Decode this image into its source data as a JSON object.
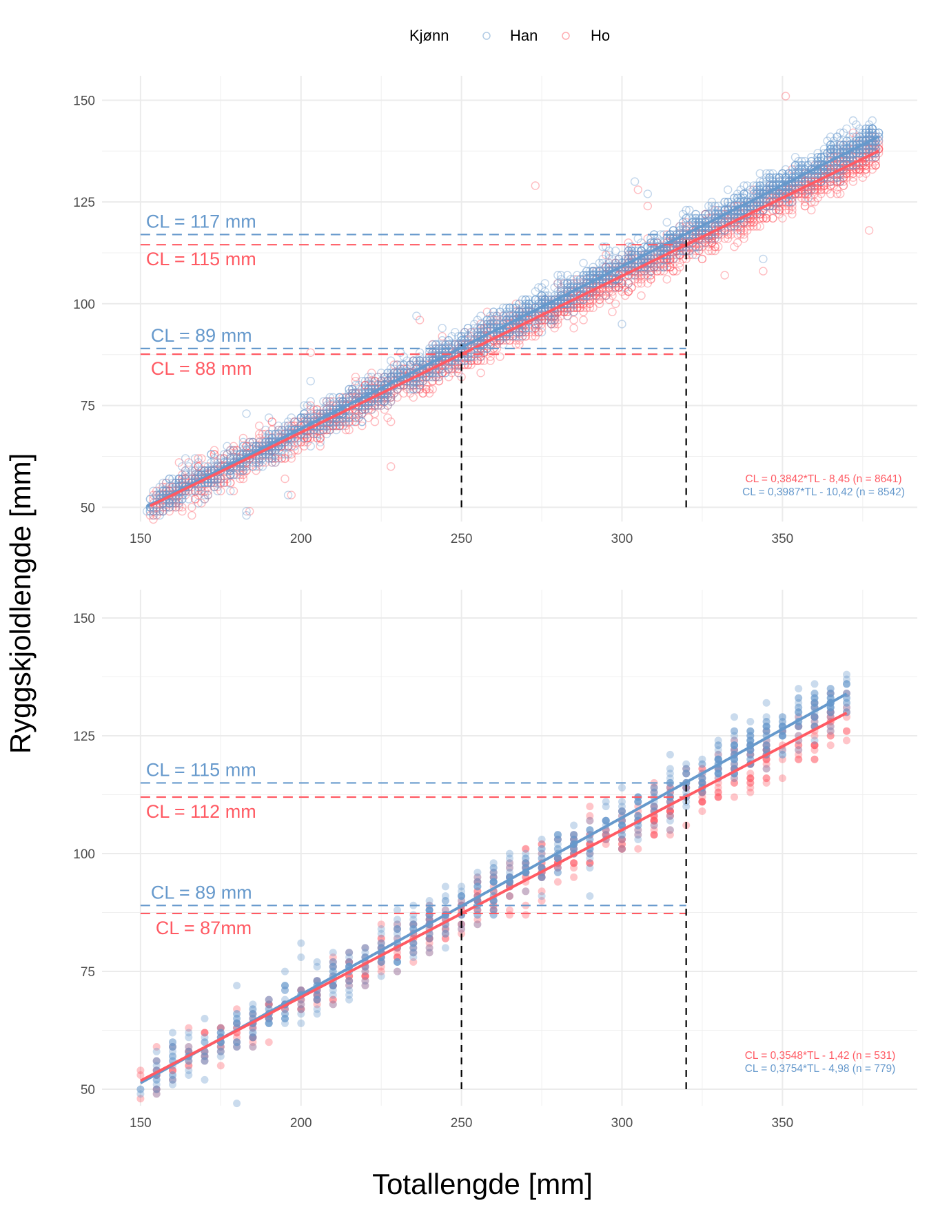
{
  "legend": {
    "title": "Kjønn",
    "position": "top",
    "items": [
      {
        "label": "Han",
        "color": "#6699cc"
      },
      {
        "label": "Ho",
        "color": "#ff5a63"
      }
    ]
  },
  "xlabel": "Totallengde [mm]",
  "ylabel": "Ryggskjoldlengde [mm]",
  "chart_data": [
    {
      "type": "scatter",
      "xlim": [
        138,
        392
      ],
      "ylim": [
        46.5,
        156
      ],
      "xticks": [
        "150",
        "200",
        "250",
        "300",
        "350"
      ],
      "yticks": [
        "50",
        "75",
        "100",
        "125",
        "150"
      ],
      "grid": true,
      "marker": "open-circle",
      "series": [
        {
          "name": "Ho",
          "color": "#ff5a63",
          "slope": 0.3842,
          "intercept": -8.45,
          "n": 8641,
          "x_range": [
            153,
            380
          ],
          "equation": "CL = 0,3842*TL - 8,45 (n = 8641)"
        },
        {
          "name": "Han",
          "color": "#6699cc",
          "slope": 0.3987,
          "intercept": -10.42,
          "n": 8542,
          "x_range": [
            152,
            380
          ],
          "equation": "CL = 0,3987*TL - 10,42 (n = 8542)"
        }
      ],
      "reference_lines": [
        {
          "color": "#6699cc",
          "y": 117,
          "label": "CL = 117 mm"
        },
        {
          "color": "#ff5a63",
          "y": 114.5,
          "label": "CL = 115 mm"
        },
        {
          "color": "#6699cc",
          "y": 89,
          "label": "CL = 89 mm"
        },
        {
          "color": "#ff5a63",
          "y": 87.6,
          "label": "CL = 88 mm"
        }
      ],
      "vertical_lines": [
        {
          "x": 250,
          "y_top": 90
        },
        {
          "x": 320,
          "y_top": 117
        }
      ]
    },
    {
      "type": "scatter",
      "xlim": [
        138,
        392
      ],
      "ylim": [
        46.5,
        156
      ],
      "xticks": [
        "150",
        "200",
        "250",
        "300",
        "350"
      ],
      "yticks": [
        "50",
        "75",
        "100",
        "125",
        "150"
      ],
      "grid": true,
      "marker": "filled-circle",
      "series": [
        {
          "name": "Ho",
          "color": "#ff5a63",
          "slope": 0.3548,
          "intercept": -1.42,
          "n": 531,
          "x_range": [
            150,
            370
          ],
          "equation": "CL = 0,3548*TL - 1,42 (n = 531)"
        },
        {
          "name": "Han",
          "color": "#6699cc",
          "slope": 0.3754,
          "intercept": -4.98,
          "n": 779,
          "x_range": [
            150,
            370
          ],
          "equation": "CL = 0,3754*TL - 4,98 (n = 779)"
        }
      ],
      "reference_lines": [
        {
          "color": "#6699cc",
          "y": 115,
          "label": "CL = 115 mm"
        },
        {
          "color": "#ff5a63",
          "y": 112,
          "label": "CL = 112 mm"
        },
        {
          "color": "#6699cc",
          "y": 89,
          "label": "CL = 89 mm"
        },
        {
          "color": "#ff5a63",
          "y": 87.3,
          "label": "CL = 87mm"
        }
      ],
      "vertical_lines": [
        {
          "x": 250,
          "y_top": 89
        },
        {
          "x": 320,
          "y_top": 115
        }
      ]
    }
  ]
}
